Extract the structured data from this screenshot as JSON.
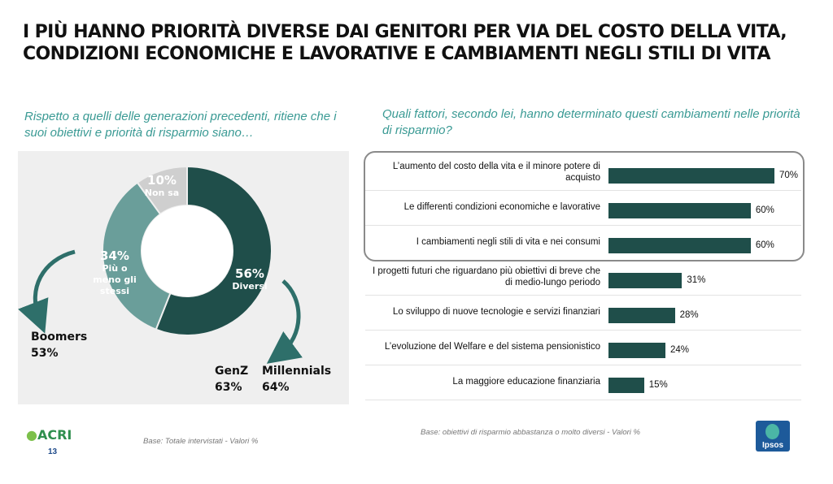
{
  "title": {
    "line1": "I più hanno priorità diverse dai genitori per via del costo della vita,",
    "line2": "condizioni economiche e lavorative e cambiamenti negli stili di vita"
  },
  "left_question": "Rispetto a quelli delle generazioni precedenti, ritiene che i suoi obiettivi e priorità di risparmio siano…",
  "right_question": "Quali fattori, secondo lei, hanno determinato questi cambiamenti nelle priorità di risparmio?",
  "colors": {
    "diversi": "#1f4e4a",
    "stessi": "#6a9e9a",
    "non_sa": "#cfcfcf",
    "bar": "#1f4e4a",
    "accent": "#3a9a94",
    "arrow": "#2e6f6a"
  },
  "chart_data": [
    {
      "type": "pie",
      "subtype": "donut",
      "slices": [
        {
          "label": "Diversi",
          "value": 56,
          "value_label": "56%"
        },
        {
          "label": "Più o meno gli stessi",
          "value": 34,
          "value_label": "34%"
        },
        {
          "label": "Non sa",
          "value": 10,
          "value_label": "10%"
        }
      ],
      "annotations": [
        {
          "name": "Boomers",
          "value_label": "53%"
        },
        {
          "name": "GenZ",
          "value_label": "63%"
        },
        {
          "name": "Millennials",
          "value_label": "64%"
        }
      ]
    },
    {
      "type": "bar",
      "orientation": "horizontal",
      "unit": "%",
      "categories": [
        "L’aumento del costo della vita e il minore potere di acquisto",
        "Le differenti condizioni economiche e lavorative",
        "I cambiamenti negli stili di vita e nei consumi",
        "I progetti futuri che riguardano più obiettivi di breve che di medio-lungo periodo",
        "Lo sviluppo di nuove tecnologie e servizi finanziari",
        "L’evoluzione del Welfare e del sistema pensionistico",
        "La maggiore educazione finanziaria"
      ],
      "values": [
        70,
        60,
        60,
        31,
        28,
        24,
        15
      ],
      "value_labels": [
        "70%",
        "60%",
        "60%",
        "31%",
        "28%",
        "24%",
        "15%"
      ],
      "highlighted": [
        "L’aumento del costo della vita e il minore potere di acquisto",
        "Le differenti condizioni economiche e lavorative",
        "I cambiamenti negli stili di vita e nei consumi"
      ]
    }
  ],
  "footnotes": {
    "left": "Base: Totale intervistati  - Valori %",
    "right": "Base: obiettivi di risparmio abbastanza o molto diversi  - Valori %"
  },
  "logos": {
    "acri": "ACRI",
    "ipsos": "Ipsos"
  },
  "page_number": "13"
}
